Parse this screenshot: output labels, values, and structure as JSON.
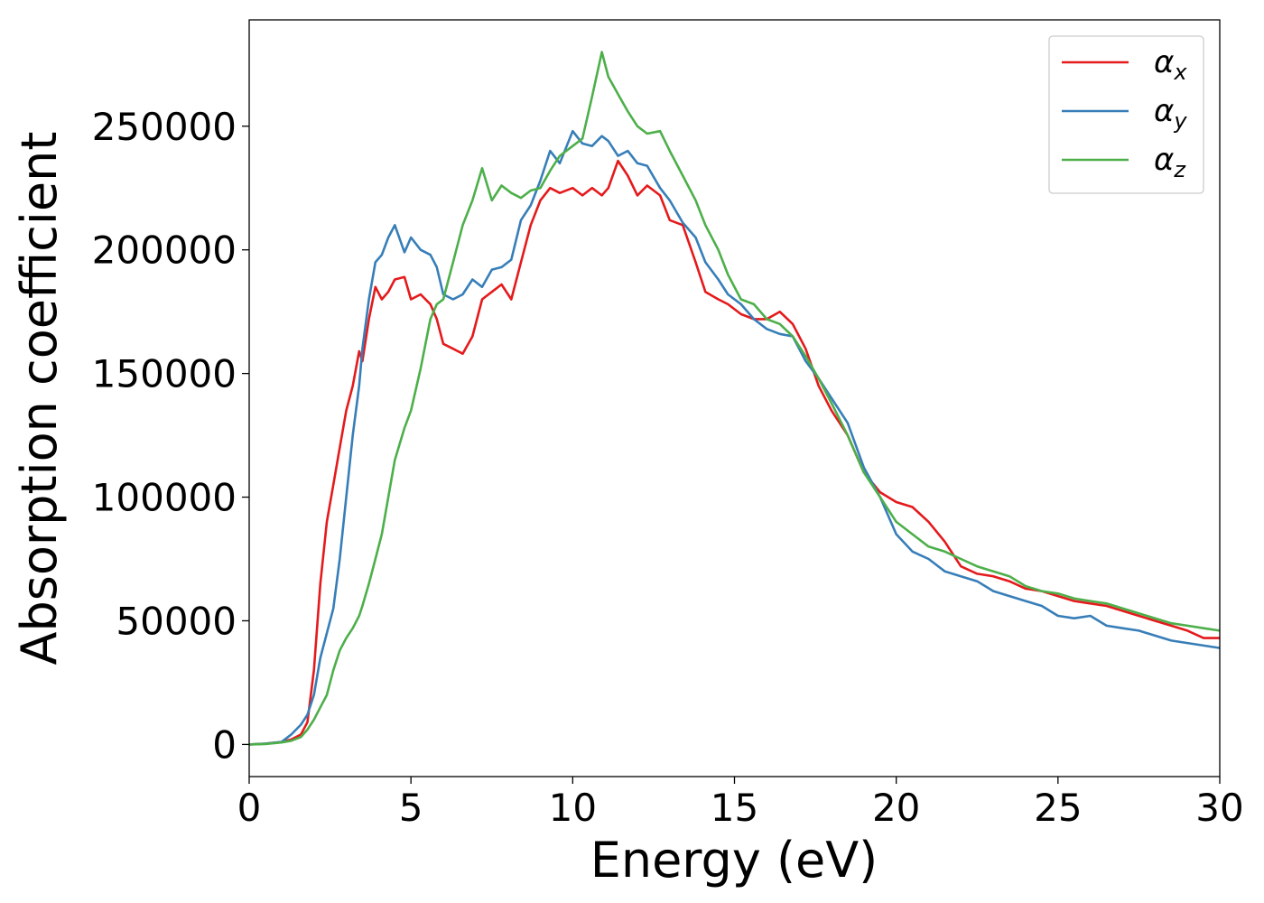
{
  "chart_data": {
    "type": "line",
    "xlabel": "Energy (eV)",
    "ylabel": "Absorption coefficient",
    "xlim": [
      0,
      30
    ],
    "ylim": [
      -13000,
      293000
    ],
    "xticks": [
      0,
      5,
      10,
      15,
      20,
      25,
      30
    ],
    "xtick_labels": [
      "0",
      "5",
      "10",
      "15",
      "20",
      "25",
      "30"
    ],
    "yticks": [
      0,
      50000,
      100000,
      150000,
      200000,
      250000
    ],
    "ytick_labels": [
      "0",
      "50000",
      "100000",
      "150000",
      "200000",
      "250000"
    ],
    "grid": false,
    "legend_position": "top-right",
    "series": [
      {
        "name": "α",
        "subscript": "x",
        "color": "#e41a1c",
        "x": [
          0,
          0.5,
          1,
          1.3,
          1.6,
          1.8,
          2.0,
          2.2,
          2.4,
          2.6,
          2.8,
          3.0,
          3.2,
          3.4,
          3.5,
          3.7,
          3.9,
          4.1,
          4.3,
          4.5,
          4.8,
          5.0,
          5.3,
          5.6,
          5.8,
          6.0,
          6.3,
          6.6,
          6.9,
          7.2,
          7.5,
          7.8,
          8.1,
          8.4,
          8.7,
          9.0,
          9.3,
          9.6,
          10.0,
          10.3,
          10.6,
          10.9,
          11.1,
          11.4,
          11.7,
          12.0,
          12.3,
          12.7,
          13.0,
          13.4,
          13.8,
          14.1,
          14.5,
          14.8,
          15.2,
          15.6,
          16.0,
          16.4,
          16.8,
          17.2,
          17.6,
          18.0,
          18.5,
          19.0,
          19.5,
          20.0,
          20.5,
          21.0,
          21.5,
          22.0,
          22.5,
          23.0,
          23.5,
          24.0,
          24.5,
          25.0,
          25.5,
          26.0,
          26.5,
          27.0,
          27.5,
          28.0,
          28.5,
          29.0,
          29.5,
          30.0
        ],
        "y": [
          0,
          300,
          1000,
          2000,
          4000,
          9000,
          30000,
          65000,
          90000,
          105000,
          120000,
          135000,
          145000,
          159000,
          155000,
          172000,
          185000,
          180000,
          183000,
          188000,
          189000,
          180000,
          182000,
          178000,
          172000,
          162000,
          160000,
          158000,
          165000,
          180000,
          183000,
          186000,
          180000,
          195000,
          210000,
          220000,
          225000,
          223000,
          225000,
          222000,
          225000,
          222000,
          225000,
          236000,
          230000,
          222000,
          226000,
          222000,
          212000,
          210000,
          195000,
          183000,
          180000,
          178000,
          174000,
          172000,
          172000,
          175000,
          170000,
          160000,
          145000,
          135000,
          125000,
          110000,
          102000,
          98000,
          96000,
          90000,
          82000,
          72000,
          69000,
          68000,
          66000,
          63000,
          62000,
          60000,
          58000,
          57000,
          56000,
          54000,
          52000,
          50000,
          48000,
          46000,
          43000,
          43000
        ]
      },
      {
        "name": "α",
        "subscript": "y",
        "color": "#377eb8",
        "x": [
          0,
          0.5,
          1,
          1.3,
          1.6,
          1.8,
          2.0,
          2.2,
          2.4,
          2.6,
          2.8,
          3.0,
          3.2,
          3.4,
          3.5,
          3.7,
          3.9,
          4.1,
          4.3,
          4.5,
          4.8,
          5.0,
          5.3,
          5.6,
          5.8,
          6.0,
          6.3,
          6.6,
          6.9,
          7.2,
          7.5,
          7.8,
          8.1,
          8.4,
          8.7,
          9.0,
          9.3,
          9.6,
          10.0,
          10.3,
          10.6,
          10.9,
          11.1,
          11.4,
          11.7,
          12.0,
          12.3,
          12.7,
          13.0,
          13.4,
          13.8,
          14.1,
          14.5,
          14.8,
          15.2,
          15.6,
          16.0,
          16.4,
          16.8,
          17.2,
          17.6,
          18.0,
          18.5,
          19.0,
          19.5,
          20.0,
          20.5,
          21.0,
          21.5,
          22.0,
          22.5,
          23.0,
          23.5,
          24.0,
          24.5,
          25.0,
          25.5,
          26.0,
          26.5,
          27.0,
          27.5,
          28.0,
          28.5,
          29.0,
          29.5,
          30.0
        ],
        "y": [
          0,
          300,
          1000,
          4000,
          8000,
          12000,
          20000,
          35000,
          45000,
          55000,
          75000,
          100000,
          125000,
          145000,
          160000,
          180000,
          195000,
          198000,
          205000,
          210000,
          199000,
          205000,
          200000,
          198000,
          193000,
          182000,
          180000,
          182000,
          188000,
          185000,
          192000,
          193000,
          196000,
          212000,
          218000,
          228000,
          240000,
          235000,
          248000,
          243000,
          242000,
          246000,
          244000,
          238000,
          240000,
          235000,
          234000,
          225000,
          220000,
          211000,
          205000,
          195000,
          188000,
          182000,
          178000,
          172000,
          168000,
          166000,
          165000,
          155000,
          148000,
          140000,
          130000,
          112000,
          100000,
          85000,
          78000,
          75000,
          70000,
          68000,
          66000,
          62000,
          60000,
          58000,
          56000,
          52000,
          51000,
          52000,
          48000,
          47000,
          46000,
          44000,
          42000,
          41000,
          40000,
          39000
        ]
      },
      {
        "name": "α",
        "subscript": "z",
        "color": "#4daf4a",
        "x": [
          0,
          0.5,
          1,
          1.3,
          1.6,
          1.8,
          2.0,
          2.2,
          2.4,
          2.6,
          2.8,
          3.0,
          3.2,
          3.4,
          3.5,
          3.7,
          3.9,
          4.1,
          4.3,
          4.5,
          4.8,
          5.0,
          5.3,
          5.6,
          5.8,
          6.0,
          6.3,
          6.6,
          6.9,
          7.2,
          7.5,
          7.8,
          8.1,
          8.4,
          8.7,
          9.0,
          9.3,
          9.6,
          10.0,
          10.3,
          10.6,
          10.9,
          11.1,
          11.4,
          11.7,
          12.0,
          12.3,
          12.7,
          13.0,
          13.4,
          13.8,
          14.1,
          14.5,
          14.8,
          15.2,
          15.6,
          16.0,
          16.4,
          16.8,
          17.2,
          17.6,
          18.0,
          18.5,
          19.0,
          19.5,
          20.0,
          20.5,
          21.0,
          21.5,
          22.0,
          22.5,
          23.0,
          23.5,
          24.0,
          24.5,
          25.0,
          25.5,
          26.0,
          26.5,
          27.0,
          27.5,
          28.0,
          28.5,
          29.0,
          29.5,
          30.0
        ],
        "y": [
          0,
          200,
          800,
          1500,
          3000,
          6000,
          10000,
          15000,
          20000,
          30000,
          38000,
          43000,
          47000,
          52000,
          56000,
          65000,
          75000,
          85000,
          100000,
          115000,
          128000,
          135000,
          152000,
          172000,
          178000,
          180000,
          195000,
          210000,
          220000,
          233000,
          220000,
          226000,
          223000,
          221000,
          224000,
          225000,
          232000,
          238000,
          242000,
          245000,
          262000,
          280000,
          270000,
          263000,
          256000,
          250000,
          247000,
          248000,
          240000,
          230000,
          220000,
          210000,
          200000,
          190000,
          180000,
          178000,
          172000,
          170000,
          165000,
          157000,
          148000,
          138000,
          125000,
          110000,
          100000,
          90000,
          85000,
          80000,
          78000,
          75000,
          72000,
          70000,
          68000,
          64000,
          62000,
          61000,
          59000,
          58000,
          57000,
          55000,
          53000,
          51000,
          49000,
          48000,
          47000,
          46000
        ]
      }
    ]
  }
}
